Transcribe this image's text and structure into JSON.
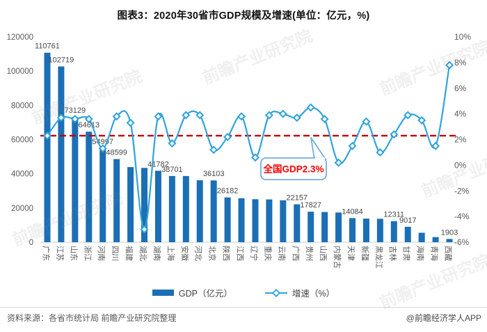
{
  "title": "图表3：2020年30省市GDP规模及增速(单位：亿元，%)",
  "chart_data": {
    "type": "bar+line",
    "title": "图表3：2020年30省市GDP规模及增速(单位：亿元，%)",
    "grid": false,
    "legend_position": "bottom",
    "categories": [
      "广东",
      "江苏",
      "山东",
      "浙江",
      "河南",
      "四川",
      "福建",
      "湖北",
      "湖南",
      "上海",
      "安徽",
      "河北",
      "北京",
      "陕西",
      "江西",
      "辽宁",
      "重庆",
      "云南",
      "广西",
      "贵州",
      "山西",
      "内蒙古",
      "天津",
      "新疆",
      "黑龙江",
      "吉林",
      "甘肃",
      "海南",
      "青海",
      "西藏"
    ],
    "series": [
      {
        "name": "GDP（亿元）",
        "type": "bar",
        "y_axis": "left",
        "color": "#1B6FB5",
        "values": [
          110761,
          102719,
          73129,
          64613,
          54997,
          48599,
          43904,
          43443,
          41782,
          38701,
          38681,
          36207,
          36103,
          26182,
          25692,
          25115,
          25003,
          24522,
          22157,
          17827,
          17652,
          17360,
          14084,
          13798,
          13699,
          12311,
          9017,
          5532,
          3006,
          1903
        ],
        "shown_data_labels": [
          "110761",
          "102719",
          "73129",
          "64613",
          "54997",
          "48599",
          null,
          null,
          "41782",
          "38701",
          null,
          null,
          "36103",
          "26182",
          null,
          null,
          null,
          null,
          "22157",
          "17827",
          null,
          null,
          "14084",
          null,
          null,
          "12311",
          "9017",
          null,
          null,
          "1903"
        ]
      },
      {
        "name": "增速（%）",
        "type": "line",
        "y_axis": "right",
        "color": "#2FA3DC",
        "marker": "diamond",
        "values": [
          2.3,
          3.7,
          3.6,
          3.6,
          1.3,
          3.8,
          3.3,
          -5.0,
          3.8,
          1.7,
          3.9,
          3.9,
          1.2,
          2.2,
          3.8,
          0.6,
          3.9,
          4.0,
          3.7,
          4.5,
          3.6,
          0.2,
          1.5,
          3.4,
          1.0,
          2.4,
          3.9,
          3.5,
          1.5,
          7.8
        ]
      }
    ],
    "left_axis": {
      "min": 0,
      "max": 120000,
      "step": 20000
    },
    "right_axis": {
      "min": -6,
      "max": 10,
      "step": 2,
      "suffix": "%"
    },
    "reference_line": {
      "value": 2.3,
      "label": "全国GDP2.3%",
      "line_color": "#C00000",
      "label_color": "#FF0000"
    }
  },
  "legend": {
    "gdp": "GDP（亿元）",
    "growth": "增速（%）"
  },
  "footer": {
    "source": "资料来源：各省市统计局 前瞻产业研究院整理",
    "credit": "@前瞻经济学人APP"
  },
  "watermark": "前瞻产业研究院"
}
